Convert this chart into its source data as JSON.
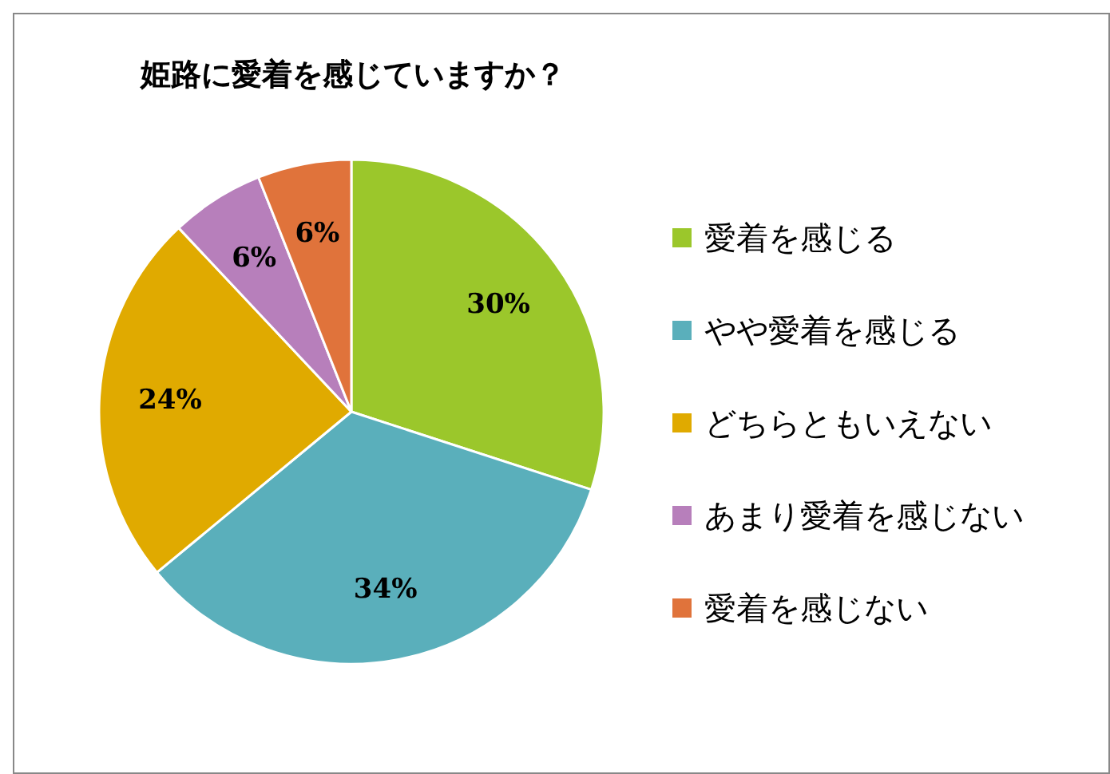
{
  "chart_data": {
    "type": "pie",
    "title": "姫路に愛着を感じていますか？",
    "categories": [
      "愛着を感じる",
      "やや愛着を感じる",
      "どちらともいえない",
      "あまり愛着を感じない",
      "愛着を感じない"
    ],
    "values": [
      30,
      34,
      24,
      6,
      6
    ],
    "colors": [
      "#9bc72b",
      "#5aafbb",
      "#e0aa00",
      "#b77fbb",
      "#e0733b"
    ],
    "value_labels": [
      "30%",
      "34%",
      "24%",
      "6%",
      "6%"
    ],
    "legend": "right"
  }
}
